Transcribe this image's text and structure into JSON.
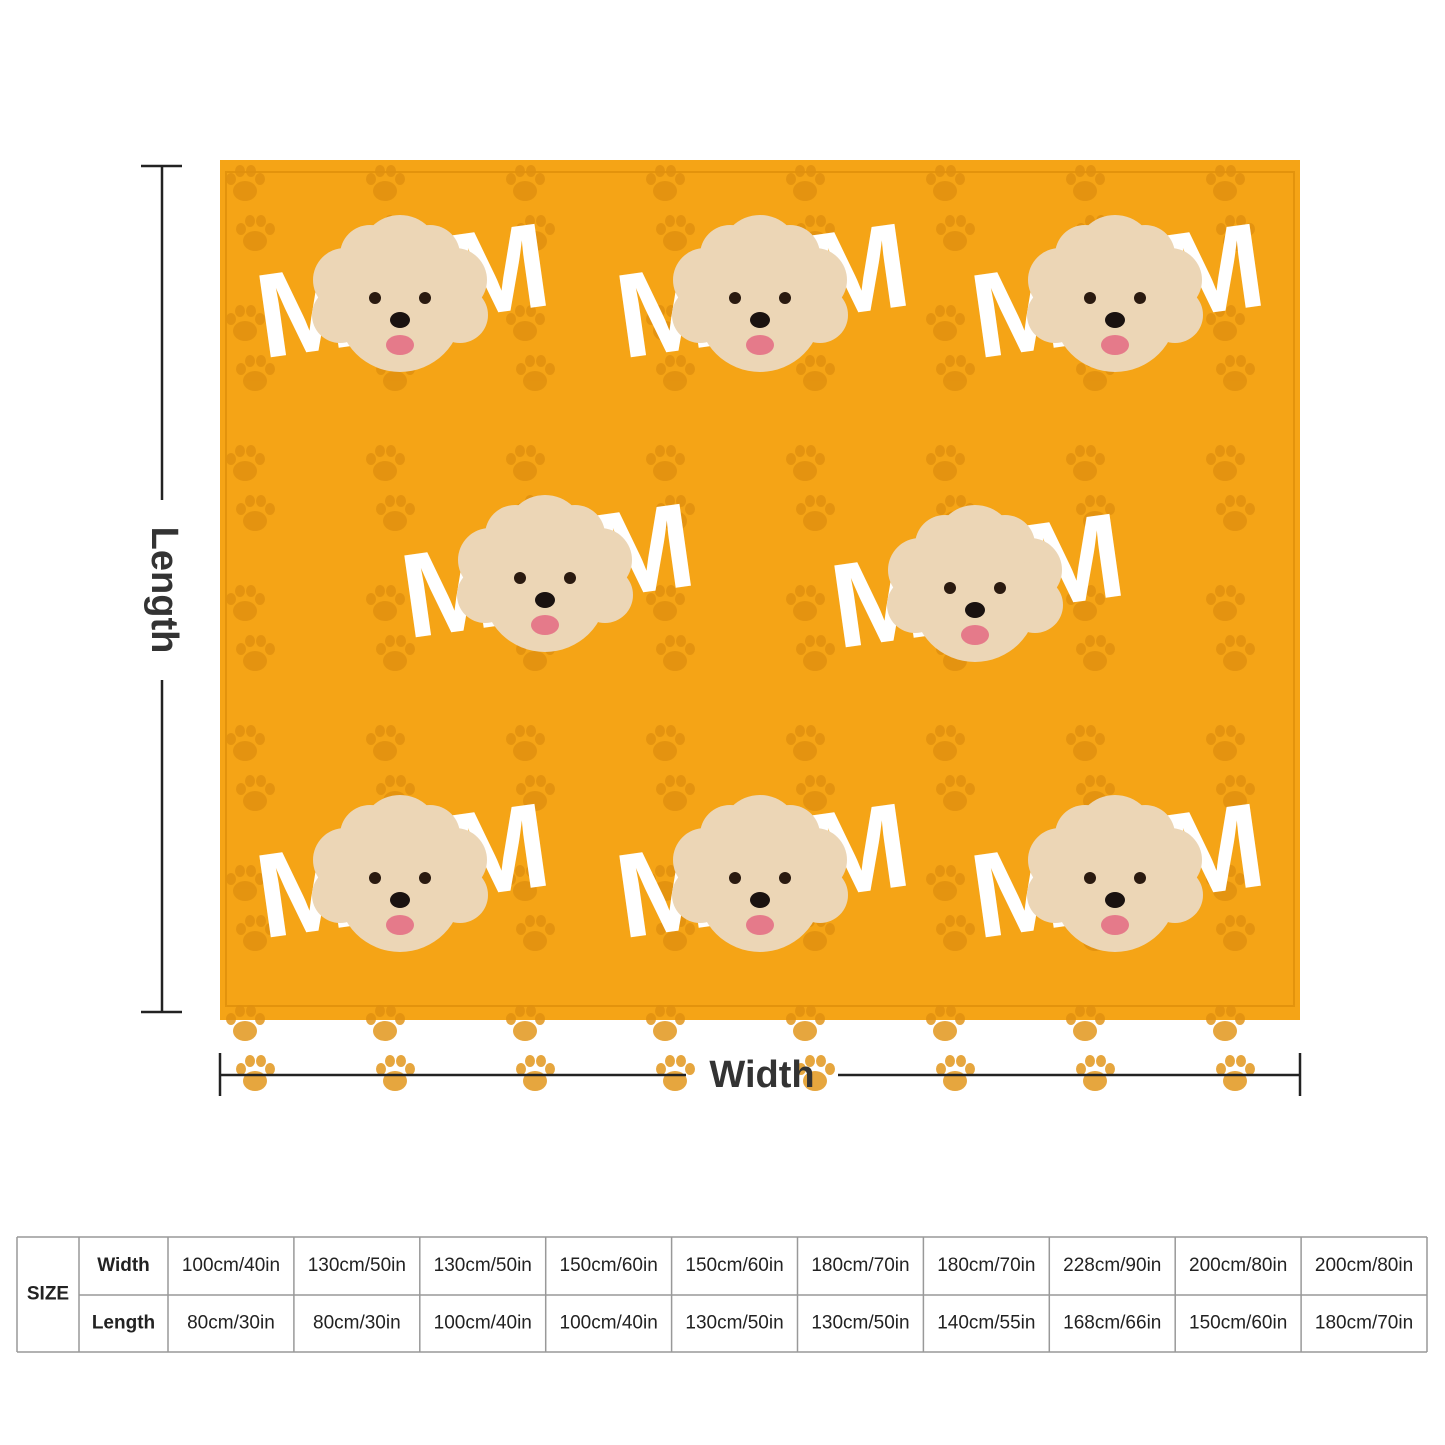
{
  "blanket": {
    "pattern_letter": "M"
  },
  "dimensions": {
    "length_label": "Length",
    "width_label": "Width"
  },
  "table": {
    "header": "SIZE",
    "rows": [
      {
        "label": "Width",
        "cells": [
          "100cm/40in",
          "130cm/50in",
          "130cm/50in",
          "150cm/60in",
          "150cm/60in",
          "180cm/70in",
          "180cm/70in",
          "228cm/90in",
          "200cm/80in",
          "200cm/80in"
        ]
      },
      {
        "label": "Length",
        "cells": [
          "80cm/30in",
          "80cm/30in",
          "100cm/40in",
          "100cm/40in",
          "130cm/50in",
          "130cm/50in",
          "140cm/55in",
          "168cm/66in",
          "150cm/60in",
          "180cm/70in"
        ]
      }
    ]
  }
}
